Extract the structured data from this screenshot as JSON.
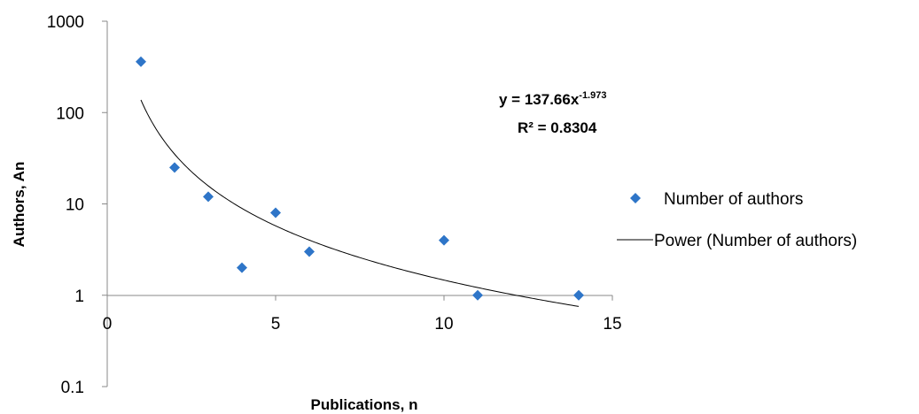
{
  "chart_data": {
    "type": "scatter",
    "title": "",
    "xlabel": "Publications, n",
    "ylabel": "Authors, An",
    "xlim": [
      0,
      15
    ],
    "ylim": [
      0.1,
      1000
    ],
    "y_scale": "log",
    "x_ticks": [
      "0",
      "5",
      "10",
      "15"
    ],
    "y_ticks": [
      "0.1",
      "1",
      "10",
      "100",
      "1000"
    ],
    "grid": false,
    "legend_position": "right",
    "series": [
      {
        "name": "Number of authors",
        "marker": "diamond",
        "color": "#2E75C8",
        "x": [
          1,
          2,
          3,
          4,
          5,
          6,
          10,
          11,
          14
        ],
        "y": [
          360,
          25,
          12,
          2,
          8,
          3,
          4,
          1,
          1
        ]
      }
    ],
    "trendline": {
      "name": "Power (Number of authors)",
      "type": "power",
      "coefficient": 137.66,
      "exponent": -1.973,
      "x_range": [
        1,
        14
      ],
      "color": "#000000"
    },
    "annotation": {
      "equation_base": "y = 137.66x",
      "equation_exponent": "-1.973",
      "r_squared": "R² = 0.8304"
    }
  }
}
